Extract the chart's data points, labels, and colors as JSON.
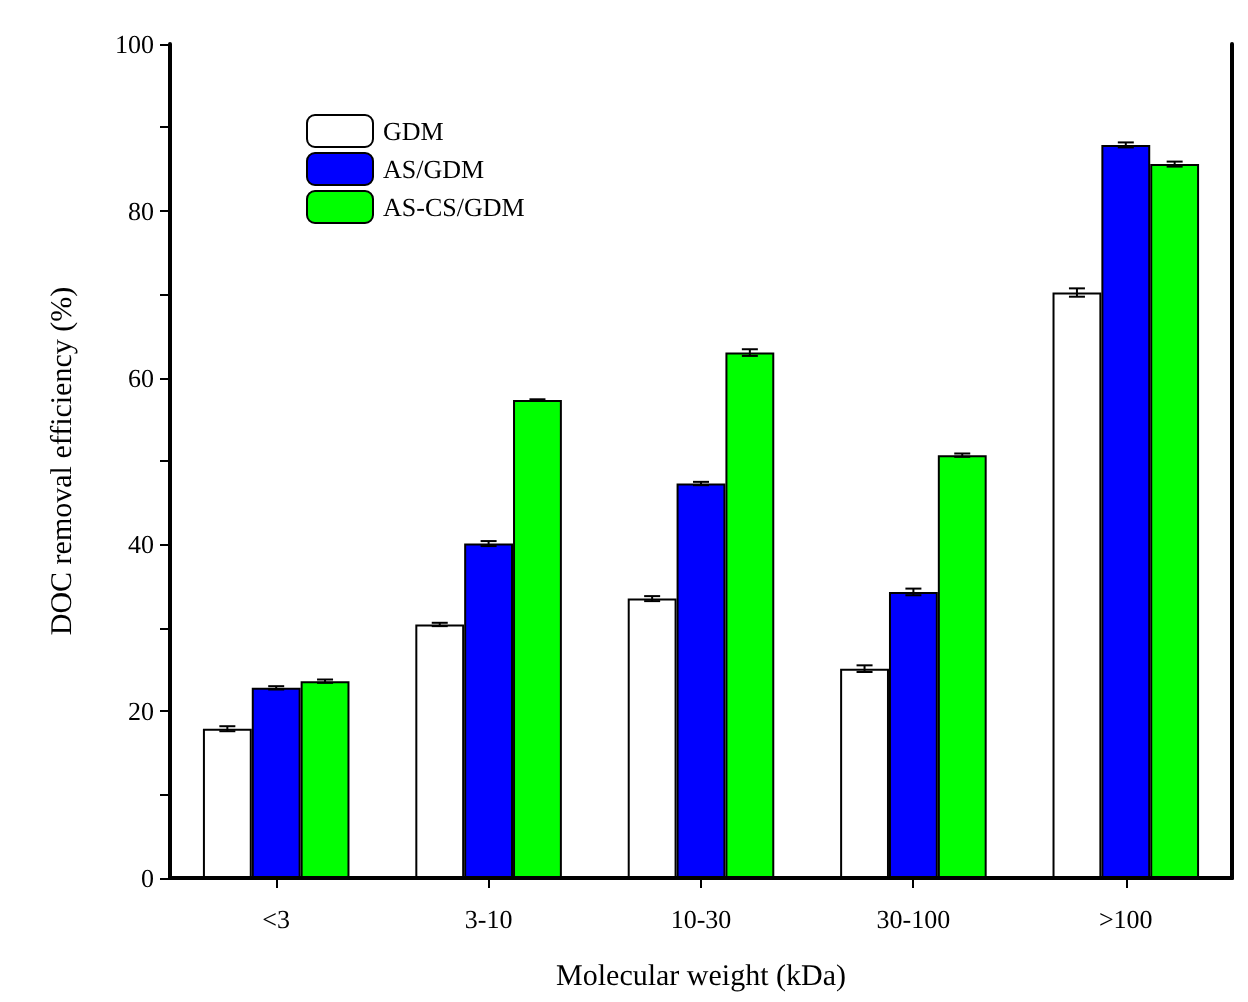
{
  "chart_data": {
    "type": "bar",
    "xlabel": "Molecular weight (kDa)",
    "ylabel": "DOC removal efficiency (%)",
    "categories": [
      "<3",
      "3-10",
      "10-30",
      "30-100",
      ">100"
    ],
    "series": [
      {
        "name": "GDM",
        "color": "#ffffff",
        "values": [
          17.9,
          30.4,
          33.5,
          25.1,
          70.2
        ],
        "errors": [
          0.3,
          0.2,
          0.3,
          0.4,
          0.5
        ]
      },
      {
        "name": "AS/GDM",
        "color": "#0000ff",
        "values": [
          22.8,
          40.1,
          47.3,
          34.3,
          87.9
        ],
        "errors": [
          0.2,
          0.3,
          0.2,
          0.4,
          0.3
        ]
      },
      {
        "name": "AS-CS/GDM",
        "color": "#00ff00",
        "values": [
          23.6,
          57.3,
          63.0,
          50.7,
          85.6
        ],
        "errors": [
          0.2,
          0.1,
          0.4,
          0.2,
          0.3
        ]
      }
    ],
    "ylim": [
      0,
      100
    ],
    "yticks": [
      0,
      {
        "value": 10,
        "label": null
      },
      20,
      {
        "value": 30,
        "label": null
      },
      40,
      {
        "value": 50,
        "label": null
      },
      60,
      {
        "value": 70,
        "label": null
      },
      80,
      {
        "value": 90,
        "label": null
      },
      100
    ],
    "grid": false,
    "legend": "top left"
  }
}
